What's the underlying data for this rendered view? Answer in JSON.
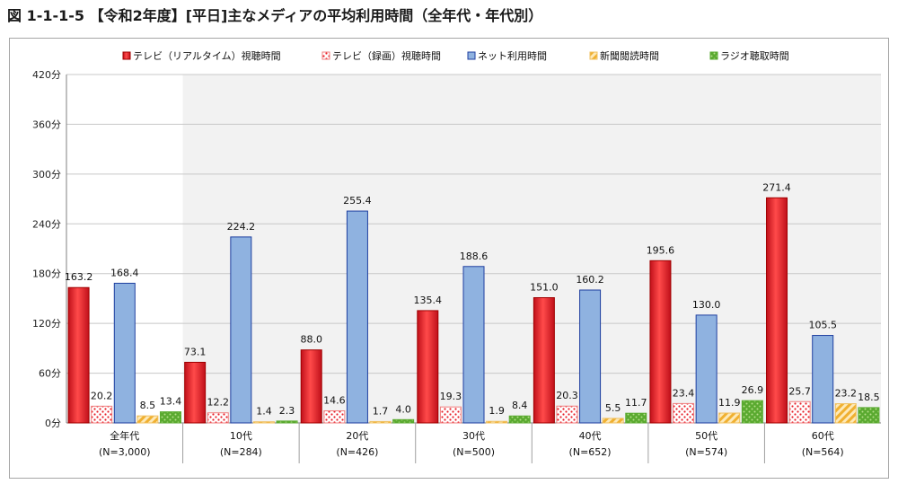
{
  "title": "図 1-1-1-5 【令和2年度】[平日]主なメディアの平均利用時間（全年代・年代別）",
  "chart_data": {
    "type": "bar",
    "title": "図 1-1-1-5 【令和2年度】[平日]主なメディアの平均利用時間（全年代・年代別）",
    "xlabel": "",
    "ylabel": "",
    "ylim": [
      0,
      420
    ],
    "yticks": [
      0,
      60,
      120,
      180,
      240,
      300,
      360,
      420
    ],
    "ytick_labels": [
      "0分",
      "60分",
      "120分",
      "180分",
      "240分",
      "300分",
      "360分",
      "420分"
    ],
    "grid": true,
    "legend_position": "top",
    "categories": [
      "全年代",
      "10代",
      "20代",
      "30代",
      "40代",
      "50代",
      "60代"
    ],
    "category_sublabels": [
      "(N=3,000)",
      "(N=284)",
      "(N=426)",
      "(N=500)",
      "(N=652)",
      "(N=574)",
      "(N=564)"
    ],
    "series": [
      {
        "name": "テレビ（リアルタイム）視聴時間",
        "values": [
          163.2,
          73.1,
          88.0,
          135.4,
          151.0,
          195.6,
          271.4
        ],
        "labels": [
          "163.2",
          "73.1",
          "88.0",
          "135.4",
          "151.0",
          "195.6",
          "271.4"
        ],
        "color": "#e8202a",
        "pattern": "gradient"
      },
      {
        "name": "テレビ（録画）視聴時間",
        "values": [
          20.2,
          12.2,
          14.6,
          19.3,
          20.3,
          23.4,
          25.7
        ],
        "labels": [
          "20.2",
          "12.2",
          "14.6",
          "19.3",
          "20.3",
          "23.4",
          "25.7"
        ],
        "color": "#e8202a",
        "pattern": "dots"
      },
      {
        "name": "ネット利用時間",
        "values": [
          168.4,
          224.2,
          255.4,
          188.6,
          160.2,
          130.0,
          105.5
        ],
        "labels": [
          "168.4",
          "224.2",
          "255.4",
          "188.6",
          "160.2",
          "130.0",
          "105.5"
        ],
        "color": "#8db4e2",
        "pattern": "solid"
      },
      {
        "name": "新聞閲読時間",
        "values": [
          8.5,
          1.4,
          1.7,
          1.9,
          5.5,
          11.9,
          23.2
        ],
        "labels": [
          "8.5",
          "1.4",
          "1.7",
          "1.9",
          "5.5",
          "11.9",
          "23.2"
        ],
        "color": "#f0b030",
        "pattern": "hatch"
      },
      {
        "name": "ラジオ聴取時間",
        "values": [
          13.4,
          2.3,
          4.0,
          8.4,
          11.7,
          26.9,
          18.5
        ],
        "labels": [
          "13.4",
          "2.3",
          "4.0",
          "8.4",
          "11.7",
          "26.9",
          "18.5"
        ],
        "color": "#7ac143",
        "pattern": "dots-light"
      }
    ]
  }
}
